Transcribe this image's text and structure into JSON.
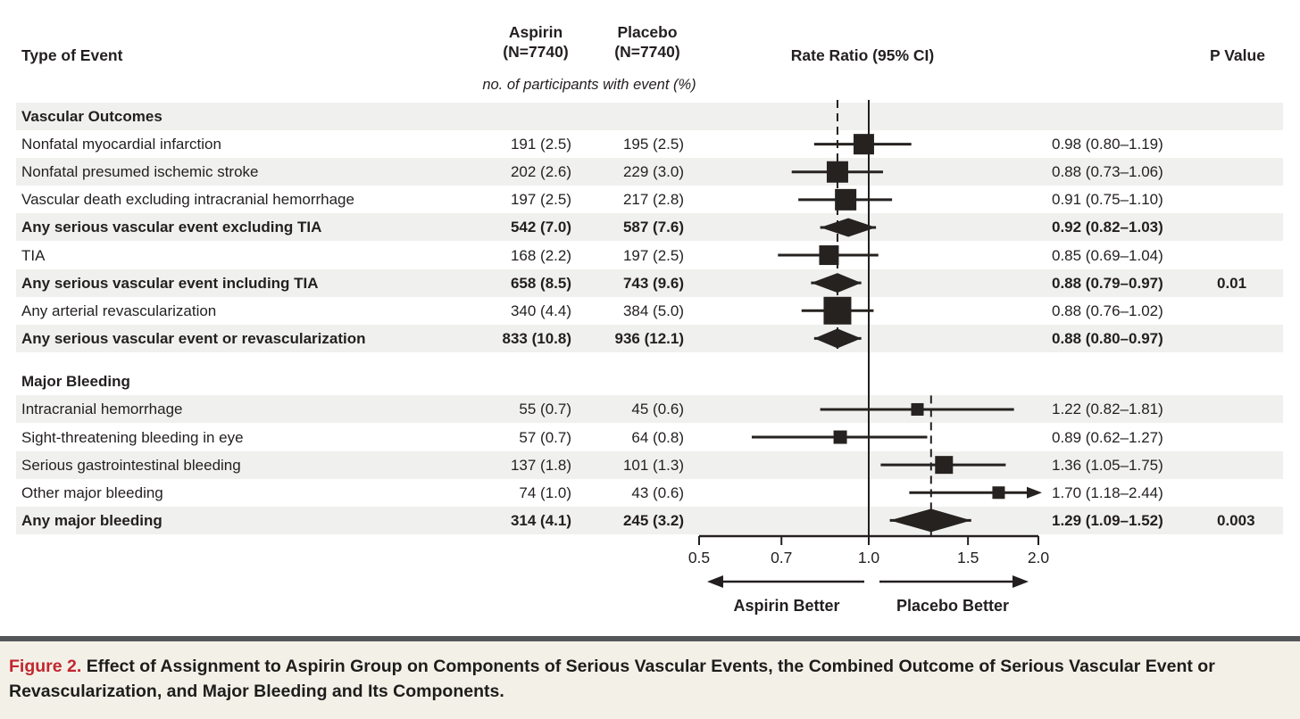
{
  "header": {
    "type_of_event": "Type of Event",
    "aspirin_line1": "Aspirin",
    "aspirin_line2": "(N=7740)",
    "placebo_line1": "Placebo",
    "placebo_line2": "(N=7740)",
    "subheader": "no. of participants with event (%)",
    "rate_ratio": "Rate Ratio (95% CI)",
    "p_value": "P Value"
  },
  "caption": {
    "label": "Figure 2.",
    "text": " Effect of Assignment to Aspirin Group on Components of Serious Vascular Events, the Combined Outcome of Serious Vascular Event or Revascularization, and Major Bleeding and Its Components."
  },
  "colors": {
    "ink": "#231f20",
    "marker": "#262220",
    "stripe": "#f0f0ee",
    "caption_bg": "#f3f0e8",
    "caption_rule": "#54565a",
    "figure_label_red": "#c1272e"
  },
  "chart_data": {
    "type": "forest",
    "axis": {
      "scale": "log",
      "min": 0.5,
      "max": 2.0,
      "reference": 1.0,
      "ticks": [
        "0.5",
        "0.7",
        "1.0",
        "1.5",
        "2.0"
      ],
      "tick_values": [
        0.5,
        0.7,
        1.0,
        1.5,
        2.0
      ],
      "left_arrow_label": "Aspirin Better",
      "right_arrow_label": "Placebo Better"
    },
    "sections": [
      {
        "title": "Vascular Outcomes",
        "dashed_reference": 0.88,
        "rows": [
          {
            "label": "Nonfatal myocardial infarction",
            "aspirin": "191 (2.5)",
            "placebo": "195 (2.5)",
            "rr": 0.98,
            "lo": 0.8,
            "hi": 1.19,
            "ci_text": "0.98 (0.80–1.19)",
            "p": "",
            "marker": "square",
            "size": 23,
            "bold": false
          },
          {
            "label": "Nonfatal presumed ischemic stroke",
            "aspirin": "202 (2.6)",
            "placebo": "229 (3.0)",
            "rr": 0.88,
            "lo": 0.73,
            "hi": 1.06,
            "ci_text": "0.88 (0.73–1.06)",
            "p": "",
            "marker": "square",
            "size": 24,
            "bold": false
          },
          {
            "label": "Vascular death excluding intracranial hemorrhage",
            "aspirin": "197 (2.5)",
            "placebo": "217 (2.8)",
            "rr": 0.91,
            "lo": 0.75,
            "hi": 1.1,
            "ci_text": "0.91 (0.75–1.10)",
            "p": "",
            "marker": "square",
            "size": 24,
            "bold": false
          },
          {
            "label": "Any serious vascular event excluding TIA",
            "aspirin": "542 (7.0)",
            "placebo": "587 (7.6)",
            "rr": 0.92,
            "lo": 0.82,
            "hi": 1.03,
            "ci_text": "0.92 (0.82–1.03)",
            "p": "",
            "marker": "diamond",
            "size": 21,
            "bold": true
          },
          {
            "label": "TIA",
            "aspirin": "168 (2.2)",
            "placebo": "197 (2.5)",
            "rr": 0.85,
            "lo": 0.69,
            "hi": 1.04,
            "ci_text": "0.85 (0.69–1.04)",
            "p": "",
            "marker": "square",
            "size": 22,
            "bold": false
          },
          {
            "label": "Any serious vascular event including TIA",
            "aspirin": "658 (8.5)",
            "placebo": "743 (9.6)",
            "rr": 0.88,
            "lo": 0.79,
            "hi": 0.97,
            "ci_text": "0.88 (0.79–0.97)",
            "p": "0.01",
            "marker": "diamond",
            "size": 22,
            "bold": true
          },
          {
            "label": "Any arterial revascularization",
            "aspirin": "340 (4.4)",
            "placebo": "384 (5.0)",
            "rr": 0.88,
            "lo": 0.76,
            "hi": 1.02,
            "ci_text": "0.88 (0.76–1.02)",
            "p": "",
            "marker": "square",
            "size": 31,
            "bold": false
          },
          {
            "label": "Any serious vascular event or revascularization",
            "aspirin": "833 (10.8)",
            "placebo": "936 (12.1)",
            "rr": 0.88,
            "lo": 0.8,
            "hi": 0.97,
            "ci_text": "0.88 (0.80–0.97)",
            "p": "",
            "marker": "diamond",
            "size": 22,
            "bold": true
          }
        ]
      },
      {
        "title": "Major Bleeding",
        "dashed_reference": 1.29,
        "rows": [
          {
            "label": "Intracranial hemorrhage",
            "aspirin": "55 (0.7)",
            "placebo": "45 (0.6)",
            "rr": 1.22,
            "lo": 0.82,
            "hi": 1.81,
            "ci_text": "1.22 (0.82–1.81)",
            "p": "",
            "marker": "square",
            "size": 14,
            "bold": false
          },
          {
            "label": "Sight-threatening bleeding in eye",
            "aspirin": "57 (0.7)",
            "placebo": "64 (0.8)",
            "rr": 0.89,
            "lo": 0.62,
            "hi": 1.27,
            "ci_text": "0.89 (0.62–1.27)",
            "p": "",
            "marker": "square",
            "size": 15,
            "bold": false
          },
          {
            "label": "Serious gastrointestinal bleeding",
            "aspirin": "137 (1.8)",
            "placebo": "101 (1.3)",
            "rr": 1.36,
            "lo": 1.05,
            "hi": 1.75,
            "ci_text": "1.36 (1.05–1.75)",
            "p": "",
            "marker": "square",
            "size": 20,
            "bold": false
          },
          {
            "label": "Other major bleeding",
            "aspirin": "74 (1.0)",
            "placebo": "43 (0.6)",
            "rr": 1.7,
            "lo": 1.18,
            "hi": 2.44,
            "hi_arrow": true,
            "ci_text": "1.70 (1.18–2.44)",
            "p": "",
            "marker": "square",
            "size": 14,
            "bold": false
          },
          {
            "label": "Any major bleeding",
            "aspirin": "314 (4.1)",
            "placebo": "245 (3.2)",
            "rr": 1.29,
            "lo": 1.09,
            "hi": 1.52,
            "ci_text": "1.29 (1.09–1.52)",
            "p": "0.003",
            "marker": "diamond",
            "size": 26,
            "bold": true
          }
        ]
      }
    ]
  }
}
